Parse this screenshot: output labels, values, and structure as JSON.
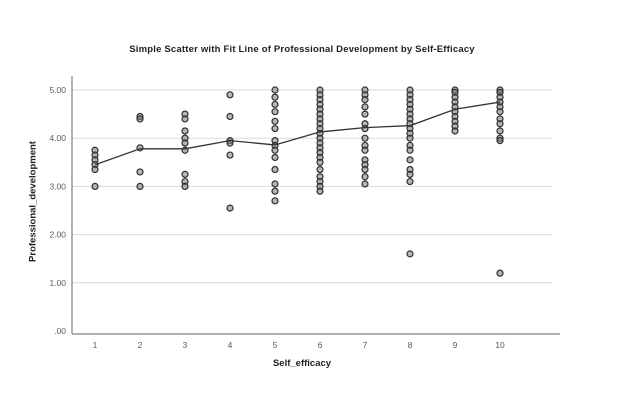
{
  "chart_data": {
    "type": "scatter",
    "title": "Simple Scatter with Fit Line of Professional Development by Self-Efficacy",
    "xlabel": "Self_efficacy",
    "ylabel": "Professional_development",
    "x_ticks": [
      1,
      2,
      3,
      4,
      5,
      6,
      7,
      8,
      9,
      10
    ],
    "y_ticks": [
      {
        "label": ".00",
        "value": 0
      },
      {
        "label": "1.00",
        "value": 1
      },
      {
        "label": "2.00",
        "value": 2
      },
      {
        "label": "3.00",
        "value": 3
      },
      {
        "label": "4.00",
        "value": 4
      },
      {
        "label": "5.00",
        "value": 5
      }
    ],
    "xlim": [
      0.5,
      11.2
    ],
    "ylim": [
      0,
      5.3
    ],
    "grid": "horizontal",
    "legend": "none",
    "columns": [
      {
        "x": 1,
        "ys": [
          3.75,
          3.65,
          3.55,
          3.45,
          3.35,
          3.0
        ]
      },
      {
        "x": 2,
        "ys": [
          4.45,
          4.4,
          3.8,
          3.3,
          3.0
        ]
      },
      {
        "x": 3,
        "ys": [
          4.5,
          4.4,
          4.15,
          4.0,
          3.9,
          3.75,
          3.25,
          3.1,
          3.0
        ]
      },
      {
        "x": 4,
        "ys": [
          4.9,
          4.45,
          3.95,
          3.9,
          3.65,
          2.55
        ]
      },
      {
        "x": 5,
        "ys": [
          5.0,
          4.85,
          4.7,
          4.55,
          4.35,
          4.2,
          3.95,
          3.85,
          3.75,
          3.6,
          3.35,
          3.05,
          2.9,
          2.7
        ]
      },
      {
        "x": 6,
        "ys": [
          5.0,
          4.9,
          4.8,
          4.7,
          4.6,
          4.5,
          4.4,
          4.3,
          4.2,
          4.1,
          4.0,
          3.9,
          3.8,
          3.7,
          3.6,
          3.5,
          3.35,
          3.2,
          3.1,
          3.0,
          2.9
        ]
      },
      {
        "x": 7,
        "ys": [
          5.0,
          4.9,
          4.8,
          4.65,
          4.5,
          4.3,
          4.2,
          4.0,
          3.85,
          3.75,
          3.55,
          3.45,
          3.35,
          3.2,
          3.05
        ]
      },
      {
        "x": 8,
        "ys": [
          5.0,
          4.9,
          4.8,
          4.7,
          4.6,
          4.5,
          4.4,
          4.3,
          4.2,
          4.1,
          4.0,
          3.85,
          3.75,
          3.55,
          3.35,
          3.25,
          3.1,
          1.6
        ]
      },
      {
        "x": 9,
        "ys": [
          5.0,
          4.95,
          4.85,
          4.75,
          4.65,
          4.55,
          4.45,
          4.35,
          4.25,
          4.15
        ]
      },
      {
        "x": 10,
        "ys": [
          5.0,
          4.95,
          4.85,
          4.75,
          4.65,
          4.55,
          4.4,
          4.3,
          4.15,
          4.0,
          3.95,
          1.2
        ]
      }
    ],
    "fit_line": {
      "x": [
        1,
        2,
        3,
        4,
        5,
        6,
        7,
        8,
        9,
        10
      ],
      "y": [
        3.45,
        3.78,
        3.78,
        3.95,
        3.86,
        4.13,
        4.22,
        4.26,
        4.6,
        4.75
      ]
    },
    "colors": {
      "marker_stroke": "#2f2f2f",
      "marker_fill": "#7a7a7a",
      "fit_line": "#333333",
      "gridline": "#dadada",
      "axis": "#808080",
      "tick_text": "#5a5a5a",
      "title_text": "#1f1f1f"
    }
  }
}
